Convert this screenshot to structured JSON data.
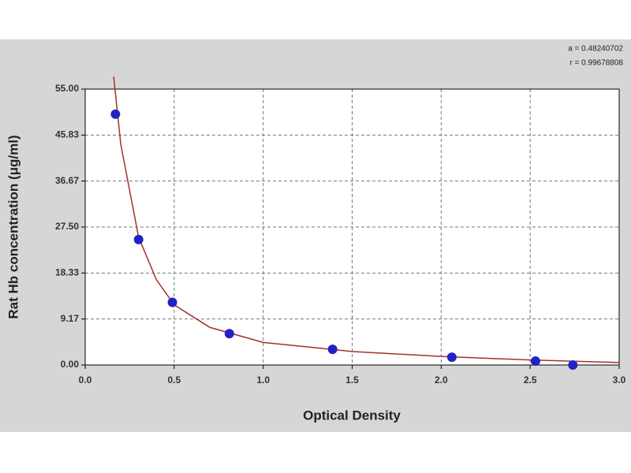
{
  "chart_data": {
    "type": "scatter",
    "x_label": "Optical Density",
    "y_label": "Rat Hb concentration (μg/ml)",
    "annotations": [
      "a = 0.48240702",
      "r = 0.99678808"
    ],
    "xlim": [
      0,
      3
    ],
    "ylim": [
      0,
      55
    ],
    "xticks": [
      {
        "value": 0,
        "label": "0.0"
      },
      {
        "value": 0.5,
        "label": "0.5"
      },
      {
        "value": 1,
        "label": "1.0"
      },
      {
        "value": 1.5,
        "label": "1.5"
      },
      {
        "value": 2,
        "label": "2.0"
      },
      {
        "value": 2.5,
        "label": "2.5"
      },
      {
        "value": 3,
        "label": "3.0"
      }
    ],
    "yticks": [
      {
        "value": 0,
        "label": "0.00"
      },
      {
        "value": 9.17,
        "label": "9.17"
      },
      {
        "value": 18.33,
        "label": "18.33"
      },
      {
        "value": 27.5,
        "label": "27.50"
      },
      {
        "value": 36.67,
        "label": "36.67"
      },
      {
        "value": 45.83,
        "label": "45.83"
      },
      {
        "value": 55,
        "label": "55.00"
      }
    ],
    "grid": true,
    "series": [
      {
        "mode": "line",
        "color": "#a3312b",
        "x": [
          0.16,
          0.2,
          0.3,
          0.4,
          0.5,
          0.7,
          1.0,
          1.5,
          2.0,
          2.5,
          3.0
        ],
        "values": [
          57.5,
          44,
          25.5,
          17,
          12,
          7.5,
          4.5,
          2.7,
          1.7,
          1.0,
          0.5
        ]
      },
      {
        "mode": "markers",
        "color": "#2222c4",
        "x": [
          0.17,
          0.3,
          0.49,
          0.81,
          1.39,
          2.06,
          2.53,
          2.74
        ],
        "values": [
          50,
          25,
          12.5,
          6.25,
          3.125,
          1.56,
          0.78,
          0
        ]
      }
    ]
  }
}
